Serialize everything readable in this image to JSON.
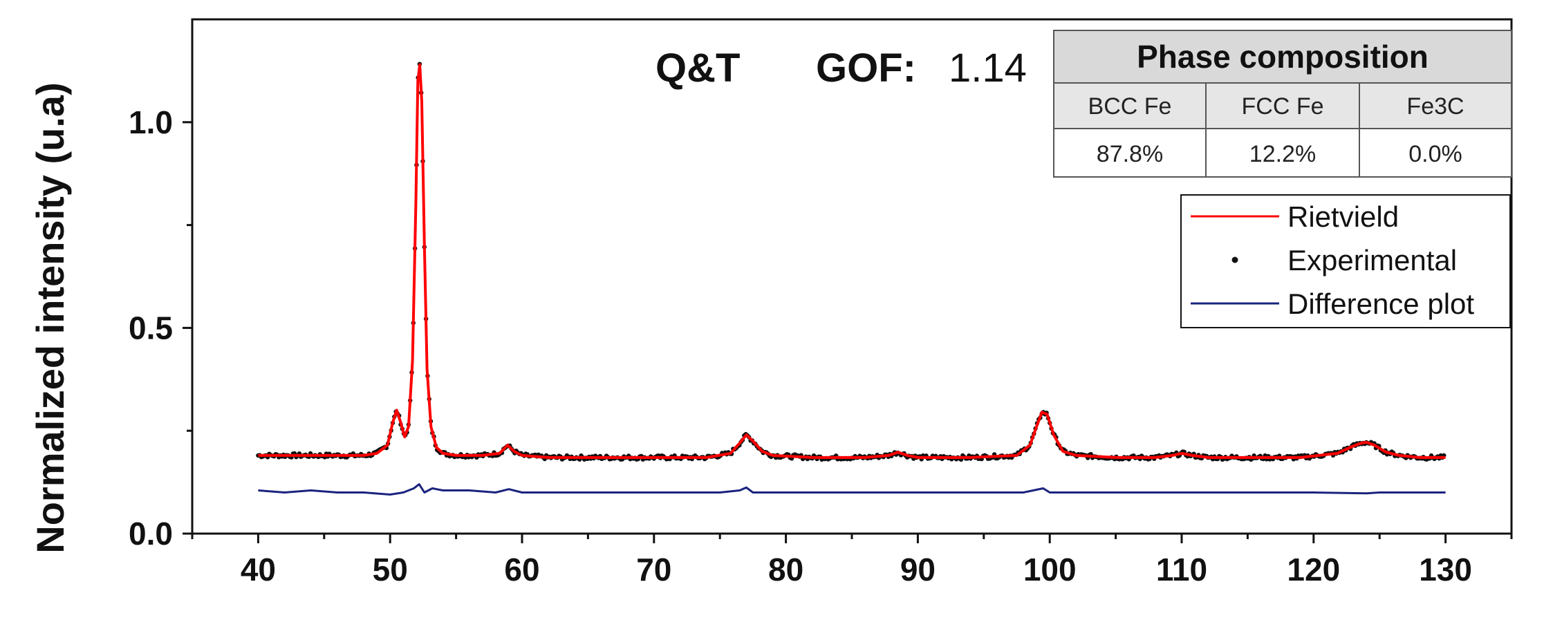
{
  "chart_data": {
    "type": "line",
    "title": "",
    "xlabel": "",
    "ylabel": "Normalized intensity (u.a)",
    "xlim": [
      35,
      135
    ],
    "ylim": [
      0,
      1.25
    ],
    "xticks": [
      40,
      50,
      60,
      70,
      80,
      90,
      100,
      110,
      120,
      130
    ],
    "yticks": [
      0.0,
      0.5,
      1.0
    ],
    "ytick_labels": [
      "0.0",
      "0.5",
      "1.0"
    ],
    "grid": false,
    "legend_position": "right",
    "annotation": {
      "sample": "Q&T",
      "gof_label": "GOF:",
      "gof_value": "1.14"
    },
    "table": {
      "title": "Phase composition",
      "headers": [
        "BCC Fe",
        "FCC Fe",
        "Fe3C"
      ],
      "values": [
        "87.8%",
        "12.2%",
        "0.0%"
      ]
    },
    "series": [
      {
        "name": "Rietvield",
        "style": "line",
        "color": "#ff0000",
        "x": [
          40,
          42,
          44,
          46,
          48,
          49,
          49.8,
          50.2,
          50.5,
          50.8,
          51.1,
          51.4,
          51.7,
          51.95,
          52.1,
          52.25,
          52.4,
          52.6,
          52.8,
          53.1,
          53.5,
          54,
          55,
          57,
          58.3,
          58.9,
          59.4,
          60,
          62,
          65,
          70,
          74,
          75.8,
          76.5,
          77,
          77.5,
          78.2,
          79,
          82,
          86,
          87.8,
          88.5,
          89.2,
          90,
          94,
          97.5,
          98.5,
          99,
          99.4,
          99.8,
          100.3,
          101,
          102,
          105,
          108,
          109.3,
          110,
          110.8,
          112,
          115,
          119,
          121.8,
          122.8,
          123.6,
          124,
          124.6,
          125.5,
          126.5,
          128,
          130
        ],
        "y": [
          0.19,
          0.19,
          0.19,
          0.19,
          0.19,
          0.195,
          0.215,
          0.27,
          0.3,
          0.27,
          0.235,
          0.26,
          0.42,
          0.8,
          1.1,
          1.14,
          1.05,
          0.7,
          0.4,
          0.26,
          0.21,
          0.195,
          0.19,
          0.19,
          0.195,
          0.215,
          0.2,
          0.19,
          0.185,
          0.185,
          0.185,
          0.185,
          0.195,
          0.22,
          0.24,
          0.225,
          0.2,
          0.19,
          0.185,
          0.185,
          0.19,
          0.198,
          0.19,
          0.185,
          0.185,
          0.19,
          0.215,
          0.26,
          0.295,
          0.29,
          0.24,
          0.2,
          0.19,
          0.185,
          0.185,
          0.19,
          0.195,
          0.19,
          0.185,
          0.185,
          0.185,
          0.195,
          0.21,
          0.22,
          0.222,
          0.215,
          0.198,
          0.19,
          0.185,
          0.185
        ]
      },
      {
        "name": "Experimental",
        "style": "points",
        "color": "#111111"
      },
      {
        "name": "Difference plot",
        "style": "line",
        "color": "#1a237e",
        "x": [
          40,
          42,
          44,
          46,
          48,
          50,
          51,
          51.8,
          52.2,
          52.6,
          53.2,
          54,
          56,
          58,
          59,
          60,
          62,
          65,
          70,
          75,
          76.5,
          77,
          77.5,
          79,
          82,
          86,
          88.5,
          90,
          94,
          98,
          99.5,
          100,
          101,
          105,
          110,
          115,
          120,
          124,
          125,
          130
        ],
        "y": [
          0.105,
          0.1,
          0.105,
          0.1,
          0.1,
          0.095,
          0.1,
          0.11,
          0.12,
          0.1,
          0.11,
          0.105,
          0.105,
          0.1,
          0.108,
          0.1,
          0.1,
          0.1,
          0.1,
          0.1,
          0.105,
          0.112,
          0.1,
          0.1,
          0.1,
          0.1,
          0.1,
          0.1,
          0.1,
          0.1,
          0.11,
          0.1,
          0.1,
          0.1,
          0.1,
          0.1,
          0.1,
          0.098,
          0.1,
          0.1
        ]
      }
    ]
  }
}
